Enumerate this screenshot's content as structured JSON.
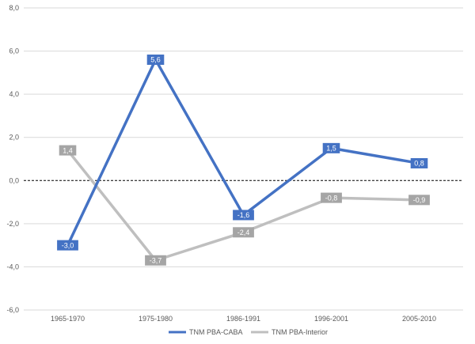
{
  "chart_data": {
    "type": "line",
    "title": "",
    "xlabel": "",
    "ylabel": "",
    "categories": [
      "1965-1970",
      "1975-1980",
      "1986-1991",
      "1996-2001",
      "2005-2010"
    ],
    "ylim": [
      -6,
      8
    ],
    "ytick_step": 2,
    "y_tick_labels": [
      "-6,0",
      "-4,0",
      "-2,0",
      "0,0",
      "2,0",
      "4,0",
      "6,0",
      "8,0"
    ],
    "grid": true,
    "zero_line": "dashed",
    "legend_position": "bottom-center",
    "series": [
      {
        "name": "TNM PBA-CABA",
        "color": "#4472c4",
        "values": [
          -3.0,
          5.6,
          -1.6,
          1.5,
          0.8
        ],
        "labels": [
          "-3,0",
          "5,6",
          "-1,6",
          "1,5",
          "0,8"
        ]
      },
      {
        "name": "TNM PBA-Interior",
        "color": "#bfbfbf",
        "label_bg": "#a5a5a5",
        "values": [
          1.4,
          -3.7,
          -2.4,
          -0.8,
          -0.9
        ],
        "labels": [
          "1,4",
          "-3,7",
          "-2,4",
          "-0,8",
          "-0,9"
        ]
      }
    ]
  }
}
